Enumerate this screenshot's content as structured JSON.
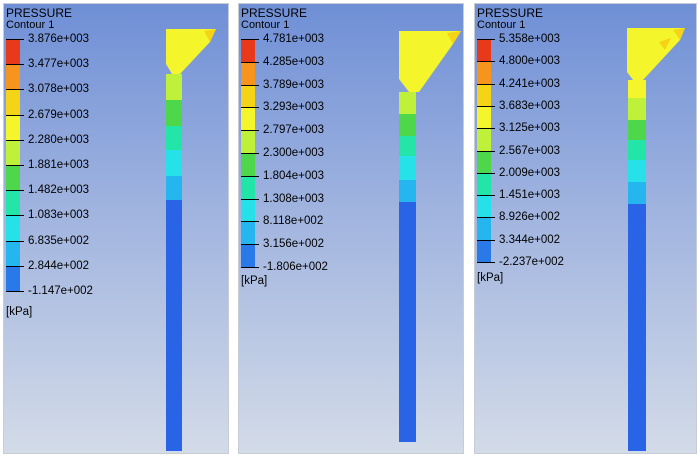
{
  "panels": [
    {
      "title": "PRESSURE",
      "subtitle": "Contour 1",
      "unit": "[kPa]",
      "labels": [
        "3.876e+003",
        "3.477e+003",
        "3.078e+003",
        "2.679e+003",
        "2.280e+003",
        "1.881e+003",
        "1.482e+003",
        "1.083e+003",
        "6.835e+002",
        "2.844e+002",
        "-1.147e+002"
      ]
    },
    {
      "title": "PRESSURE",
      "subtitle": "Contour 1",
      "unit": "[kPa]",
      "labels": [
        "4.781e+003",
        "4.285e+003",
        "3.789e+003",
        "3.293e+003",
        "2.797e+003",
        "2.300e+003",
        "1.804e+003",
        "1.308e+003",
        "8.118e+002",
        "3.156e+002",
        "-1.806e+002"
      ]
    },
    {
      "title": "PRESSURE",
      "subtitle": "Contour 1",
      "unit": "[kPa]",
      "labels": [
        "5.358e+003",
        "4.800e+003",
        "4.241e+003",
        "3.683e+003",
        "3.125e+003",
        "2.567e+003",
        "2.009e+003",
        "1.451e+003",
        "8.926e+002",
        "3.344e+002",
        "-2.237e+002"
      ]
    }
  ],
  "colors": {
    "legend_bands": [
      "#e8391a",
      "#f7941d",
      "#f5d316",
      "#f4f52a",
      "#bff03a",
      "#4ed74a",
      "#24e5a8",
      "#26e1e8",
      "#26b6ef",
      "#2a79e8"
    ],
    "column_blue": "#2a64e6",
    "panel_top": "#6f8fd6",
    "panel_bottom": "#d3dbe8"
  }
}
